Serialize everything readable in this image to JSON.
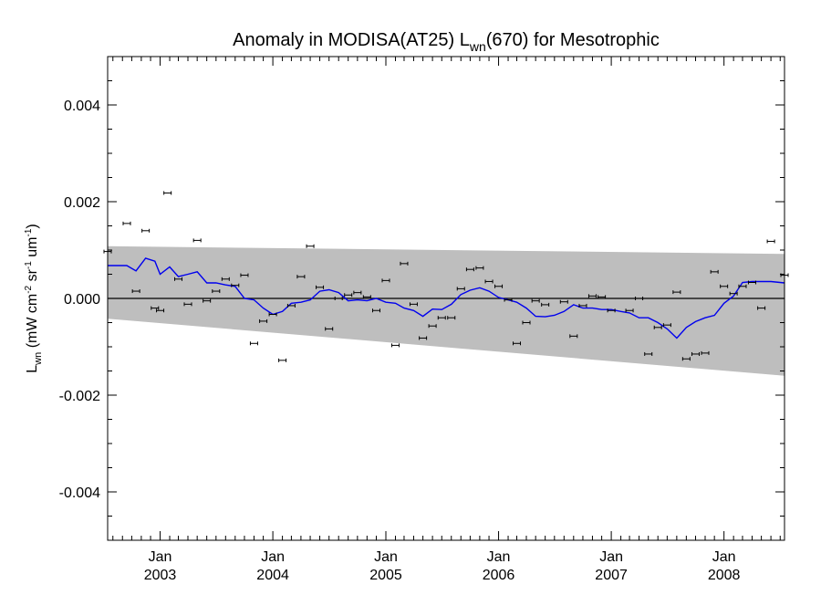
{
  "chart_data": {
    "type": "scatter",
    "title": {
      "prefix": "Anomaly in MODISA(AT25) L",
      "sub": "wn",
      "suffix": "(670) for Mesotrophic"
    },
    "ylabel": {
      "base": "L",
      "base_sub": "wn",
      "units_open": " (mW cm",
      "exp1": "-2",
      "mid1": " sr",
      "exp2": "-1",
      "mid2": " um",
      "exp3": "-1",
      "units_close": ")"
    },
    "xlim": [
      "2002-07-15",
      "2008-07-15"
    ],
    "ylim": [
      -0.005,
      0.005
    ],
    "y_ticks": [
      {
        "value": 0.004,
        "label": "0.004"
      },
      {
        "value": 0.002,
        "label": "0.002"
      },
      {
        "value": 0.0,
        "label": "0.000"
      },
      {
        "value": -0.002,
        "label": "-0.002"
      },
      {
        "value": -0.004,
        "label": "-0.004"
      }
    ],
    "x_ticks": [
      {
        "date": "2003-01-01",
        "month": "Jan",
        "year": "2003"
      },
      {
        "date": "2004-01-01",
        "month": "Jan",
        "year": "2004"
      },
      {
        "date": "2005-01-01",
        "month": "Jan",
        "year": "2005"
      },
      {
        "date": "2006-01-01",
        "month": "Jan",
        "year": "2006"
      },
      {
        "date": "2007-01-01",
        "month": "Jan",
        "year": "2007"
      },
      {
        "date": "2008-01-01",
        "month": "Jan",
        "year": "2008"
      }
    ],
    "band": {
      "start": "2002-07-15",
      "end": "2008-07-15",
      "upper": [
        0.00108,
        0.00092
      ],
      "lower": [
        -0.00042,
        -0.0016
      ],
      "color": "#bebebe"
    },
    "zero_line": 0.0,
    "points": [
      {
        "date": "2002-07-15",
        "value": 0.00097
      },
      {
        "date": "2002-09-15",
        "value": 0.00155
      },
      {
        "date": "2002-10-15",
        "value": 0.00015
      },
      {
        "date": "2002-11-15",
        "value": 0.0014
      },
      {
        "date": "2002-12-15",
        "value": -0.0002
      },
      {
        "date": "2003-01-01",
        "value": -0.00025
      },
      {
        "date": "2003-01-25",
        "value": 0.00218
      },
      {
        "date": "2003-03-01",
        "value": 0.0004
      },
      {
        "date": "2003-04-01",
        "value": -0.00012
      },
      {
        "date": "2003-05-01",
        "value": 0.0012
      },
      {
        "date": "2003-06-01",
        "value": -5e-05
      },
      {
        "date": "2003-07-01",
        "value": 0.00015
      },
      {
        "date": "2003-08-01",
        "value": 0.0004
      },
      {
        "date": "2003-09-01",
        "value": 0.00027
      },
      {
        "date": "2003-10-01",
        "value": 0.00048
      },
      {
        "date": "2003-11-01",
        "value": -0.00093
      },
      {
        "date": "2003-12-01",
        "value": -0.00047
      },
      {
        "date": "2004-01-01",
        "value": -0.00033
      },
      {
        "date": "2004-02-01",
        "value": -0.00128
      },
      {
        "date": "2004-03-01",
        "value": -0.00015
      },
      {
        "date": "2004-04-01",
        "value": 0.00045
      },
      {
        "date": "2004-05-01",
        "value": 0.00108
      },
      {
        "date": "2004-06-01",
        "value": 0.00023
      },
      {
        "date": "2004-07-01",
        "value": -0.00063
      },
      {
        "date": "2004-08-01",
        "value": 0.0
      },
      {
        "date": "2004-09-01",
        "value": 7e-05
      },
      {
        "date": "2004-10-01",
        "value": 0.00012
      },
      {
        "date": "2004-11-01",
        "value": 3e-05
      },
      {
        "date": "2004-12-01",
        "value": -0.00025
      },
      {
        "date": "2005-01-01",
        "value": 0.00037
      },
      {
        "date": "2005-02-01",
        "value": -0.00097
      },
      {
        "date": "2005-03-01",
        "value": 0.00072
      },
      {
        "date": "2005-04-01",
        "value": -0.00012
      },
      {
        "date": "2005-05-01",
        "value": -0.00082
      },
      {
        "date": "2005-06-01",
        "value": -0.00057
      },
      {
        "date": "2005-07-01",
        "value": -0.0004
      },
      {
        "date": "2005-08-01",
        "value": -0.0004
      },
      {
        "date": "2005-09-01",
        "value": 0.0002
      },
      {
        "date": "2005-10-01",
        "value": 0.0006
      },
      {
        "date": "2005-11-01",
        "value": 0.00063
      },
      {
        "date": "2005-12-01",
        "value": 0.00035
      },
      {
        "date": "2006-01-01",
        "value": 0.00025
      },
      {
        "date": "2006-02-01",
        "value": -3e-05
      },
      {
        "date": "2006-03-01",
        "value": -0.00093
      },
      {
        "date": "2006-04-01",
        "value": -0.0005
      },
      {
        "date": "2006-05-01",
        "value": -5e-05
      },
      {
        "date": "2006-06-01",
        "value": -0.00013
      },
      {
        "date": "2006-08-01",
        "value": -7e-05
      },
      {
        "date": "2006-09-01",
        "value": -0.00078
      },
      {
        "date": "2006-10-01",
        "value": -0.00015
      },
      {
        "date": "2006-11-01",
        "value": 5e-05
      },
      {
        "date": "2006-12-01",
        "value": 3e-05
      },
      {
        "date": "2007-01-01",
        "value": -0.00025
      },
      {
        "date": "2007-03-01",
        "value": -0.00025
      },
      {
        "date": "2007-04-01",
        "value": 0.0
      },
      {
        "date": "2007-05-01",
        "value": -0.00115
      },
      {
        "date": "2007-06-01",
        "value": -0.0006
      },
      {
        "date": "2007-07-01",
        "value": -0.00055
      },
      {
        "date": "2007-08-01",
        "value": 0.00013
      },
      {
        "date": "2007-09-01",
        "value": -0.00125
      },
      {
        "date": "2007-10-01",
        "value": -0.00115
      },
      {
        "date": "2007-11-01",
        "value": -0.00113
      },
      {
        "date": "2007-12-01",
        "value": 0.00055
      },
      {
        "date": "2008-01-01",
        "value": 0.00025
      },
      {
        "date": "2008-02-01",
        "value": 0.0001
      },
      {
        "date": "2008-03-01",
        "value": 0.00025
      },
      {
        "date": "2008-04-01",
        "value": 0.00033
      },
      {
        "date": "2008-05-01",
        "value": -0.0002
      },
      {
        "date": "2008-06-01",
        "value": 0.00118
      },
      {
        "date": "2008-07-15",
        "value": 0.00048
      }
    ],
    "trend": {
      "color": "#0000ee",
      "points": [
        {
          "date": "2002-07-15",
          "value": 0.00068
        },
        {
          "date": "2002-09-15",
          "value": 0.00068
        },
        {
          "date": "2002-10-15",
          "value": 0.00057
        },
        {
          "date": "2002-11-15",
          "value": 0.00083
        },
        {
          "date": "2002-12-15",
          "value": 0.00077
        },
        {
          "date": "2003-01-01",
          "value": 0.0005
        },
        {
          "date": "2003-02-01",
          "value": 0.00065
        },
        {
          "date": "2003-03-01",
          "value": 0.00045
        },
        {
          "date": "2003-04-01",
          "value": 0.0005
        },
        {
          "date": "2003-05-01",
          "value": 0.00055
        },
        {
          "date": "2003-06-01",
          "value": 0.00032
        },
        {
          "date": "2003-07-01",
          "value": 0.00032
        },
        {
          "date": "2003-08-01",
          "value": 0.00028
        },
        {
          "date": "2003-09-01",
          "value": 0.00025
        },
        {
          "date": "2003-10-01",
          "value": 0.0
        },
        {
          "date": "2003-11-01",
          "value": -3e-05
        },
        {
          "date": "2003-12-01",
          "value": -0.0002
        },
        {
          "date": "2004-01-01",
          "value": -0.00033
        },
        {
          "date": "2004-02-01",
          "value": -0.00027
        },
        {
          "date": "2004-03-01",
          "value": -0.0001
        },
        {
          "date": "2004-04-01",
          "value": -8e-05
        },
        {
          "date": "2004-05-01",
          "value": -3e-05
        },
        {
          "date": "2004-06-01",
          "value": 0.00015
        },
        {
          "date": "2004-07-01",
          "value": 0.00018
        },
        {
          "date": "2004-08-01",
          "value": 0.00012
        },
        {
          "date": "2004-09-01",
          "value": -5e-05
        },
        {
          "date": "2004-10-01",
          "value": -3e-05
        },
        {
          "date": "2004-11-01",
          "value": -5e-05
        },
        {
          "date": "2004-12-01",
          "value": 0.0
        },
        {
          "date": "2005-01-01",
          "value": -8e-05
        },
        {
          "date": "2005-02-01",
          "value": -0.0001
        },
        {
          "date": "2005-03-01",
          "value": -0.0002
        },
        {
          "date": "2005-04-01",
          "value": -0.00025
        },
        {
          "date": "2005-05-01",
          "value": -0.00037
        },
        {
          "date": "2005-06-01",
          "value": -0.00022
        },
        {
          "date": "2005-07-01",
          "value": -0.00023
        },
        {
          "date": "2005-08-01",
          "value": -0.00012
        },
        {
          "date": "2005-09-01",
          "value": 8e-05
        },
        {
          "date": "2005-10-01",
          "value": 0.00017
        },
        {
          "date": "2005-11-01",
          "value": 0.00022
        },
        {
          "date": "2005-12-01",
          "value": 0.00015
        },
        {
          "date": "2006-01-01",
          "value": 2e-05
        },
        {
          "date": "2006-02-01",
          "value": -3e-05
        },
        {
          "date": "2006-03-01",
          "value": -8e-05
        },
        {
          "date": "2006-04-01",
          "value": -0.0002
        },
        {
          "date": "2006-05-01",
          "value": -0.00037
        },
        {
          "date": "2006-06-01",
          "value": -0.00038
        },
        {
          "date": "2006-07-01",
          "value": -0.00035
        },
        {
          "date": "2006-08-01",
          "value": -0.00027
        },
        {
          "date": "2006-09-01",
          "value": -0.00013
        },
        {
          "date": "2006-10-01",
          "value": -0.0002
        },
        {
          "date": "2006-11-01",
          "value": -0.0002
        },
        {
          "date": "2006-12-01",
          "value": -0.00023
        },
        {
          "date": "2007-01-01",
          "value": -0.00023
        },
        {
          "date": "2007-02-01",
          "value": -0.00027
        },
        {
          "date": "2007-03-01",
          "value": -0.0003
        },
        {
          "date": "2007-04-01",
          "value": -0.0004
        },
        {
          "date": "2007-05-01",
          "value": -0.0004
        },
        {
          "date": "2007-06-01",
          "value": -0.0005
        },
        {
          "date": "2007-07-01",
          "value": -0.00063
        },
        {
          "date": "2007-08-01",
          "value": -0.00082
        },
        {
          "date": "2007-09-01",
          "value": -0.0006
        },
        {
          "date": "2007-10-01",
          "value": -0.00048
        },
        {
          "date": "2007-11-01",
          "value": -0.0004
        },
        {
          "date": "2007-12-01",
          "value": -0.00035
        },
        {
          "date": "2008-01-01",
          "value": -0.0001
        },
        {
          "date": "2008-02-01",
          "value": 5e-05
        },
        {
          "date": "2008-03-01",
          "value": 0.00033
        },
        {
          "date": "2008-04-01",
          "value": 0.00035
        },
        {
          "date": "2008-05-01",
          "value": 0.00035
        },
        {
          "date": "2008-06-01",
          "value": 0.00035
        },
        {
          "date": "2008-07-15",
          "value": 0.00032
        }
      ]
    },
    "grid": false,
    "legend": "none"
  }
}
